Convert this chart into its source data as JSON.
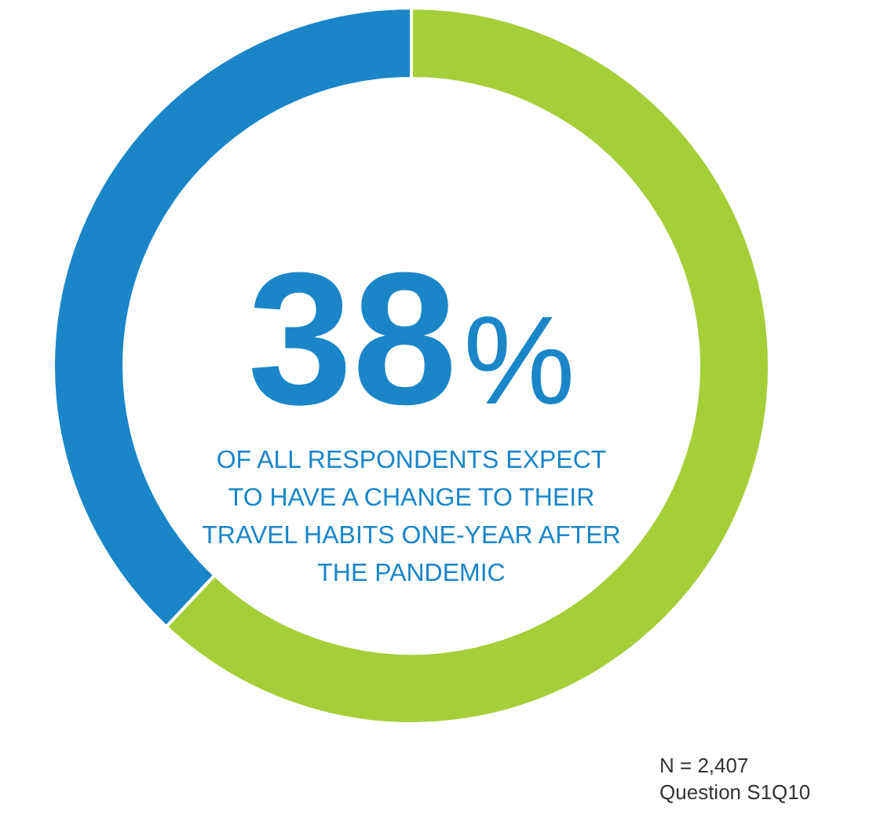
{
  "chart_data": {
    "type": "donut",
    "categories": [
      null,
      null
    ],
    "values": [
      38,
      62
    ],
    "colors": [
      "#1a86c8",
      "#a6ce39"
    ],
    "value_labels": [
      "38%",
      null
    ],
    "annotations": [
      "OF ALL RESPONDENTS EXPECT\nTO HAVE A CHANGE TO THEIR\nTRAVEL HABITS ONE-YEAR AFTER\nTHE PANDEMIC",
      "N = 2,407\nQuestion S1Q10"
    ]
  }
}
